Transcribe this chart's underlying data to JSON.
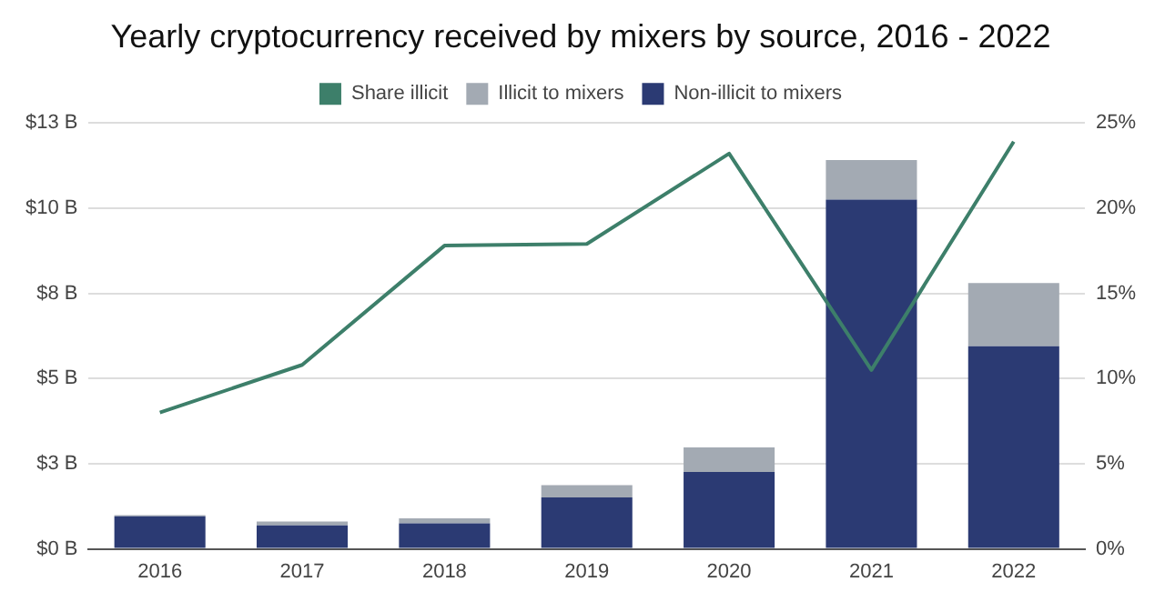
{
  "chart_data": {
    "type": "bar",
    "title": "Yearly cryptocurrency received by mixers by source, 2016 - 2022",
    "categories": [
      "2016",
      "2017",
      "2018",
      "2019",
      "2020",
      "2021",
      "2022"
    ],
    "stacked": true,
    "grid": "y",
    "legend": "top",
    "marker": "none",
    "series": [
      {
        "name": "Share illicit",
        "type": "line",
        "axis": "y2",
        "color": "#3d7f6a",
        "values": [
          8.0,
          10.8,
          17.8,
          17.9,
          23.2,
          10.5,
          23.9
        ]
      },
      {
        "name": "Non-illicit to mixers",
        "color": "#2b3a73",
        "values": [
          0.96,
          0.69,
          0.75,
          1.51,
          2.26,
          10.25,
          5.95
        ]
      },
      {
        "name": "Illicit to mixers",
        "color": "#a3aab3",
        "values": [
          0.03,
          0.11,
          0.15,
          0.36,
          0.72,
          1.16,
          1.85
        ]
      }
    ],
    "ylim": [
      0,
      12.5
    ],
    "yticks": [
      {
        "value": 0,
        "label": "$0 B"
      },
      {
        "value": 2.5,
        "label": "$3 B"
      },
      {
        "value": 5,
        "label": "$5 B"
      },
      {
        "value": 7.5,
        "label": "$8 B"
      },
      {
        "value": 10,
        "label": "$10 B"
      },
      {
        "value": 12.5,
        "label": "$13 B"
      }
    ],
    "y2lim": [
      0,
      25
    ],
    "y2ticks": [
      {
        "value": 0,
        "label": "0%"
      },
      {
        "value": 5,
        "label": "5%"
      },
      {
        "value": 10,
        "label": "10%"
      },
      {
        "value": 15,
        "label": "15%"
      },
      {
        "value": 20,
        "label": "20%"
      },
      {
        "value": 25,
        "label": "25%"
      }
    ]
  }
}
